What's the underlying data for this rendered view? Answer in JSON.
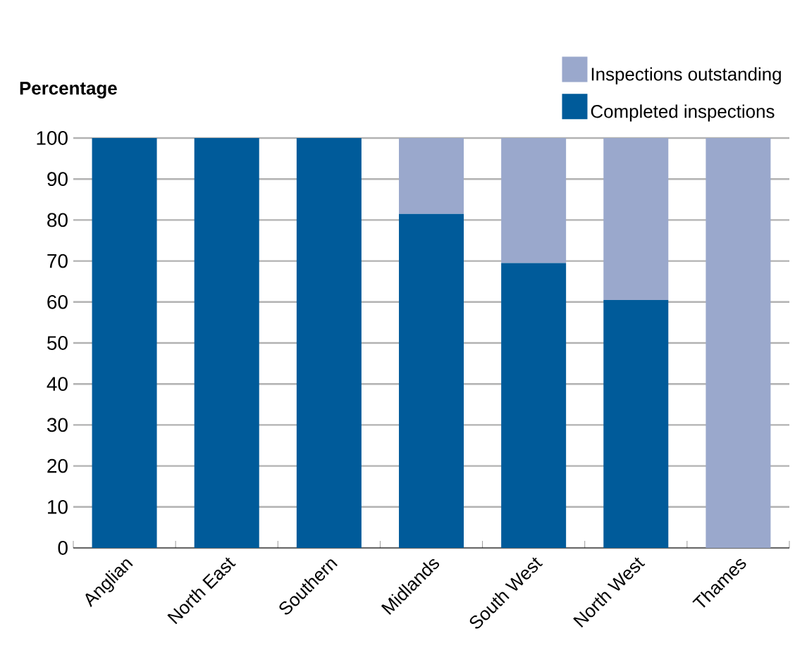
{
  "chart_data": {
    "type": "bar",
    "stacked": true,
    "ylabel": "Percentage",
    "categories": [
      "Anglian",
      "North East",
      "Southern",
      "Midlands",
      "South West",
      "North West",
      "Thames"
    ],
    "series": [
      {
        "name": "Completed inspections",
        "color": "#005b9a",
        "values": [
          100,
          100,
          100,
          81.5,
          69.5,
          60.5,
          0
        ]
      },
      {
        "name": "Inspections outstanding",
        "color": "#9aa8cc",
        "values": [
          0,
          0,
          0,
          18.5,
          30.5,
          39.5,
          100
        ]
      }
    ],
    "ylim": [
      0,
      100
    ],
    "yticks": [
      0,
      10,
      20,
      30,
      40,
      50,
      60,
      70,
      80,
      90,
      100
    ],
    "grid": "y",
    "legend": "top right"
  }
}
